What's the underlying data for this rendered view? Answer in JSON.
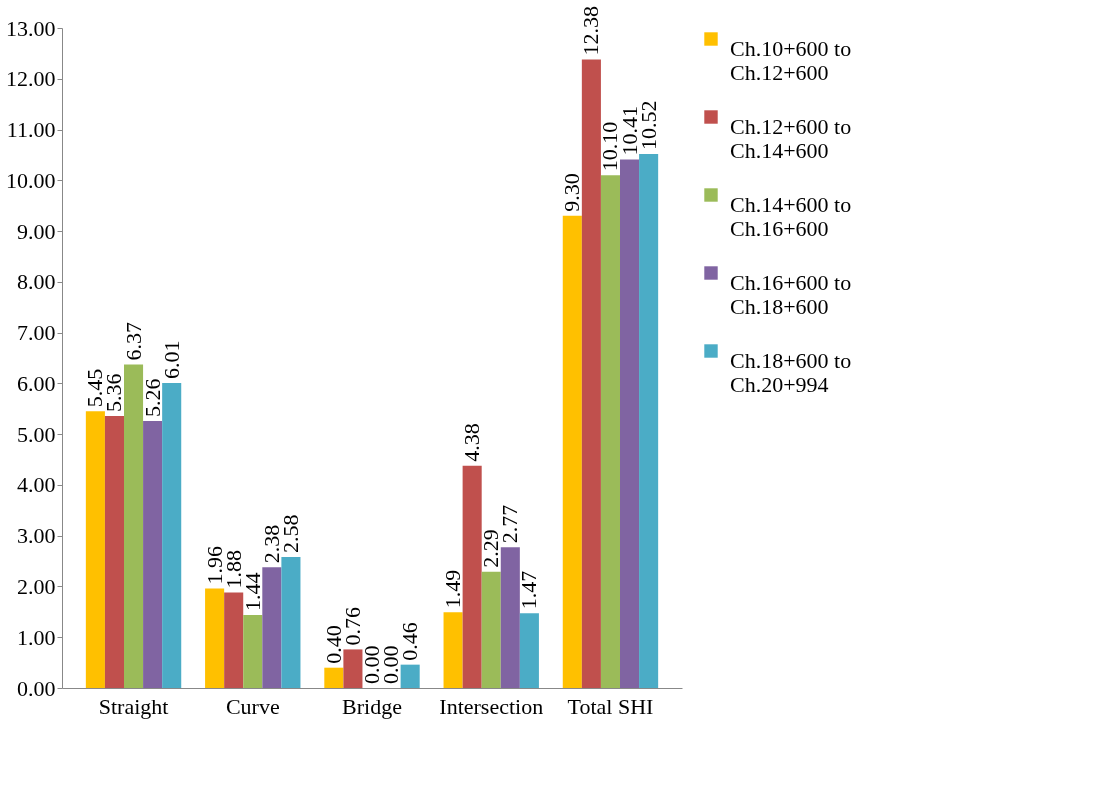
{
  "chart_data": {
    "type": "bar",
    "categories": [
      "Straight",
      "Curve",
      "Bridge",
      "Intersection",
      "Total SHI"
    ],
    "series": [
      {
        "name": "Ch.10+600 to Ch.12+600",
        "color": "#ffc000",
        "values": [
          5.45,
          1.96,
          0.4,
          1.49,
          9.3
        ],
        "value_labels": [
          "5.45",
          "1.96",
          "0.40",
          "1.49",
          "9.30"
        ]
      },
      {
        "name": "Ch.12+600 to Ch.14+600",
        "color": "#c0504d",
        "values": [
          5.36,
          1.88,
          0.76,
          4.38,
          12.38
        ],
        "value_labels": [
          "5.36",
          "1.88",
          "0.76",
          "4.38",
          "12.38"
        ]
      },
      {
        "name": "Ch.14+600 to Ch.16+600",
        "color": "#9bbb59",
        "values": [
          6.37,
          1.44,
          0.0,
          2.29,
          10.1
        ],
        "value_labels": [
          "6.37",
          "1.44",
          "0.00",
          "2.29",
          "10.10"
        ]
      },
      {
        "name": "Ch.16+600 to Ch.18+600",
        "color": "#8064a2",
        "values": [
          5.26,
          2.38,
          0.0,
          2.77,
          10.41
        ],
        "value_labels": [
          "5.26",
          "2.38",
          "0.00",
          "2.77",
          "10.41"
        ]
      },
      {
        "name": "Ch.18+600 to Ch.20+994",
        "color": "#4bacc6",
        "values": [
          6.01,
          2.58,
          0.46,
          1.47,
          10.52
        ],
        "value_labels": [
          "6.01",
          "2.58",
          "0.46",
          "1.47",
          "10.52"
        ]
      }
    ],
    "ylim": [
      0,
      13
    ],
    "yticks": [
      {
        "value": 0,
        "label": "0.00"
      },
      {
        "value": 1,
        "label": "1.00"
      },
      {
        "value": 2,
        "label": "2.00"
      },
      {
        "value": 3,
        "label": "3.00"
      },
      {
        "value": 4,
        "label": "4.00"
      },
      {
        "value": 5,
        "label": "5.00"
      },
      {
        "value": 6,
        "label": "6.00"
      },
      {
        "value": 7,
        "label": "7.00"
      },
      {
        "value": 8,
        "label": "8.00"
      },
      {
        "value": 9,
        "label": "9.00"
      },
      {
        "value": 10,
        "label": "10.00"
      },
      {
        "value": 11,
        "label": "11.00"
      },
      {
        "value": 12,
        "label": "12.00"
      },
      {
        "value": 13,
        "label": "13.00"
      }
    ],
    "grid": false,
    "legend": "right"
  }
}
